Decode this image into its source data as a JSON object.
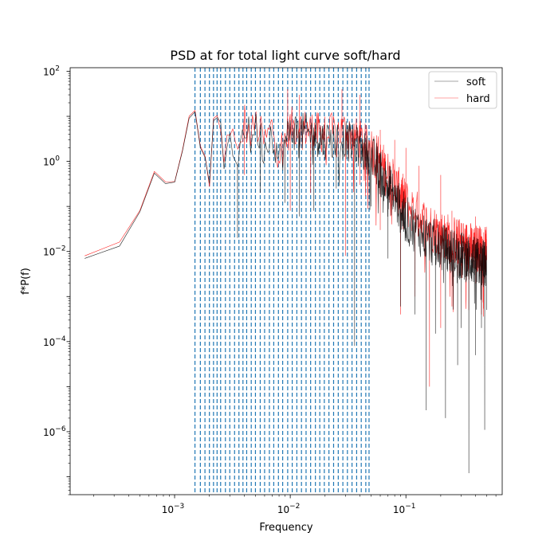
{
  "chart_data": {
    "type": "line",
    "title": "PSD at for total light curve soft/hard",
    "xlabel": "Frequency",
    "ylabel": "f*P(f)",
    "xscale": "log",
    "yscale": "log",
    "xlim": [
      0.000125,
      0.68
    ],
    "ylim": [
      4e-08,
      120
    ],
    "x_ticks": [
      {
        "value": 0.001,
        "base": "10",
        "exp": "−3"
      },
      {
        "value": 0.01,
        "base": "10",
        "exp": "−2"
      },
      {
        "value": 0.1,
        "base": "10",
        "exp": "−1"
      }
    ],
    "y_ticks": [
      {
        "value": 100,
        "base": "10",
        "exp": "2"
      },
      {
        "value": 1,
        "base": "10",
        "exp": "0"
      },
      {
        "value": 0.01,
        "base": "10",
        "exp": "−2"
      },
      {
        "value": 0.0001,
        "base": "10",
        "exp": "−4"
      },
      {
        "value": 1e-06,
        "base": "10",
        "exp": "−6"
      }
    ],
    "grid": false,
    "legend": {
      "position": "top-right",
      "entries": [
        "soft",
        "hard"
      ]
    },
    "series": [
      {
        "name": "soft",
        "color": "#000000",
        "style": "noisy-envelope",
        "points": [
          [
            0.000167,
            0.007
          ],
          [
            0.000333,
            0.013
          ],
          [
            0.0005,
            0.075
          ],
          [
            0.000667,
            0.55
          ],
          [
            0.000833,
            0.32
          ],
          [
            0.001,
            0.34
          ],
          [
            0.00117,
            1.7
          ],
          [
            0.00133,
            9
          ],
          [
            0.0015,
            13
          ],
          [
            0.00167,
            2
          ],
          [
            0.00183,
            1.3
          ],
          [
            0.002,
            0.3
          ],
          [
            0.00217,
            8
          ],
          [
            0.00233,
            10
          ],
          [
            0.0025,
            3
          ],
          [
            0.00267,
            0.6
          ],
          [
            0.003,
            7
          ],
          [
            0.0035,
            0.8
          ],
          [
            0.004,
            8
          ],
          [
            0.0045,
            3
          ],
          [
            0.005,
            6
          ],
          [
            0.006,
            2
          ],
          [
            0.007,
            5
          ],
          [
            0.008,
            1
          ],
          [
            0.01,
            5
          ],
          [
            0.015,
            4
          ],
          [
            0.02,
            3
          ],
          [
            0.03,
            3
          ],
          [
            0.04,
            2
          ],
          [
            0.05,
            1.2
          ],
          [
            0.07,
            0.3
          ],
          [
            0.1,
            0.05
          ],
          [
            0.15,
            0.02
          ],
          [
            0.2,
            0.012
          ],
          [
            0.3,
            0.008
          ],
          [
            0.4,
            0.006
          ],
          [
            0.5,
            0.005
          ]
        ],
        "dips": [
          [
            0.0035,
            0.02
          ],
          [
            0.0055,
            0.2
          ],
          [
            0.009,
            0.12
          ],
          [
            0.012,
            0.06
          ],
          [
            0.016,
            0.08
          ],
          [
            0.025,
            0.25
          ],
          [
            0.036,
            8e-05
          ],
          [
            0.05,
            0.1
          ],
          [
            0.07,
            0.007
          ],
          [
            0.09,
            0.0006
          ],
          [
            0.12,
            0.0004
          ],
          [
            0.15,
            3e-06
          ],
          [
            0.18,
            0.00015
          ],
          [
            0.22,
            2e-06
          ],
          [
            0.28,
            3e-05
          ],
          [
            0.3,
            0.0002
          ],
          [
            0.35,
            1.2e-07
          ],
          [
            0.4,
            5e-05
          ],
          [
            0.45,
            0.0002
          ],
          [
            0.48,
            1.1e-06
          ]
        ]
      },
      {
        "name": "hard",
        "color": "#ff0000",
        "style": "noisy-envelope",
        "points": [
          [
            0.000167,
            0.008
          ],
          [
            0.000333,
            0.016
          ],
          [
            0.0005,
            0.08
          ],
          [
            0.000667,
            0.6
          ],
          [
            0.000833,
            0.35
          ],
          [
            0.001,
            0.35
          ],
          [
            0.00117,
            1.8
          ],
          [
            0.00133,
            10
          ],
          [
            0.0015,
            14
          ],
          [
            0.00167,
            2.2
          ],
          [
            0.00183,
            1.4
          ],
          [
            0.002,
            0.25
          ],
          [
            0.00217,
            9
          ],
          [
            0.00233,
            11
          ],
          [
            0.0025,
            3.5
          ],
          [
            0.00267,
            0.7
          ],
          [
            0.003,
            8
          ],
          [
            0.0035,
            0.9
          ],
          [
            0.004,
            9
          ],
          [
            0.0045,
            3.2
          ],
          [
            0.005,
            7
          ],
          [
            0.006,
            2.5
          ],
          [
            0.007,
            6
          ],
          [
            0.008,
            1.5
          ],
          [
            0.01,
            6
          ],
          [
            0.015,
            5
          ],
          [
            0.02,
            4
          ],
          [
            0.03,
            5
          ],
          [
            0.04,
            3
          ],
          [
            0.05,
            2
          ],
          [
            0.07,
            0.5
          ],
          [
            0.1,
            0.12
          ],
          [
            0.15,
            0.04
          ],
          [
            0.2,
            0.025
          ],
          [
            0.3,
            0.015
          ],
          [
            0.4,
            0.012
          ],
          [
            0.5,
            0.01
          ]
        ],
        "dips": [
          [
            0.004,
            0.5
          ],
          [
            0.01,
            0.08
          ],
          [
            0.015,
            0.2
          ],
          [
            0.03,
            0.008
          ],
          [
            0.04,
            0.3
          ],
          [
            0.06,
            0.03
          ],
          [
            0.09,
            0.0004
          ],
          [
            0.12,
            0.001
          ],
          [
            0.16,
            1e-05
          ],
          [
            0.2,
            0.0002
          ],
          [
            0.25,
            0.0006
          ],
          [
            0.35,
            0.0005
          ],
          [
            0.45,
            0.0004
          ]
        ],
        "peaks": [
          [
            0.0095,
            40
          ],
          [
            0.012,
            30
          ],
          [
            0.028,
            40
          ],
          [
            0.04,
            30
          ],
          [
            0.06,
            5
          ],
          [
            0.08,
            3
          ],
          [
            0.1,
            2
          ],
          [
            0.13,
            0.8
          ],
          [
            0.2,
            0.5
          ],
          [
            0.25,
            0.08
          ],
          [
            0.4,
            0.06
          ]
        ]
      }
    ],
    "vlines": {
      "color": "#1f77b4",
      "style": "dashed",
      "x": [
        0.0015,
        0.00167,
        0.00183,
        0.002,
        0.00217,
        0.00233,
        0.0025,
        0.00275,
        0.003,
        0.0033,
        0.0036,
        0.0039,
        0.0042,
        0.0046,
        0.005,
        0.0055,
        0.006,
        0.0066,
        0.0072,
        0.0079,
        0.0086,
        0.0095,
        0.0104,
        0.0114,
        0.0125,
        0.0137,
        0.015,
        0.0165,
        0.018,
        0.0197,
        0.0216,
        0.0237,
        0.026,
        0.0285,
        0.0312,
        0.0342,
        0.0375,
        0.0411,
        0.045,
        0.048
      ]
    }
  }
}
